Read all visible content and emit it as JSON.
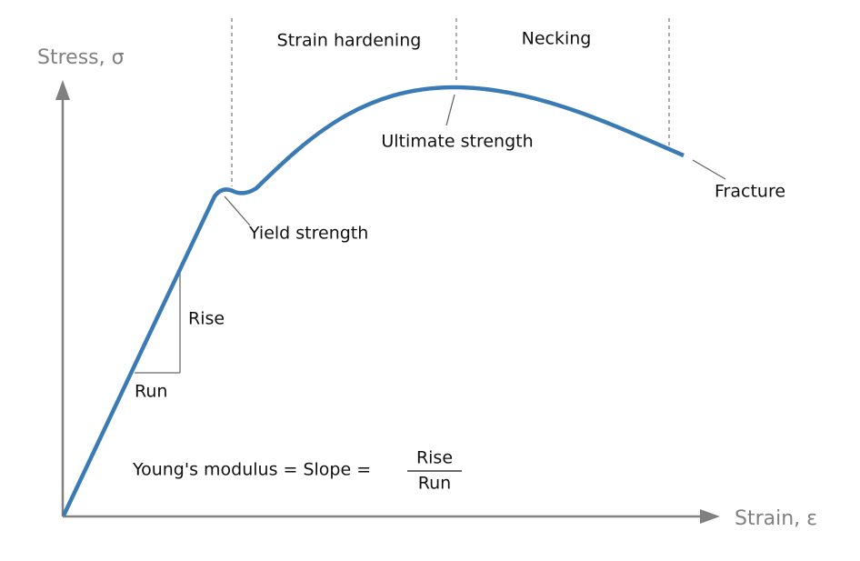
{
  "axes": {
    "y_label": "Stress, σ",
    "x_label": "Strain, ε"
  },
  "regions": [
    "Strain hardening",
    "Necking"
  ],
  "annotations": {
    "ultimate": "Ultimate strength",
    "fracture": "Fracture",
    "yield": "Yield strength",
    "rise": "Rise",
    "run": "Run"
  },
  "formula": {
    "lhs": "Young's modulus = Slope =",
    "numerator": "Rise",
    "denominator": "Run"
  }
}
